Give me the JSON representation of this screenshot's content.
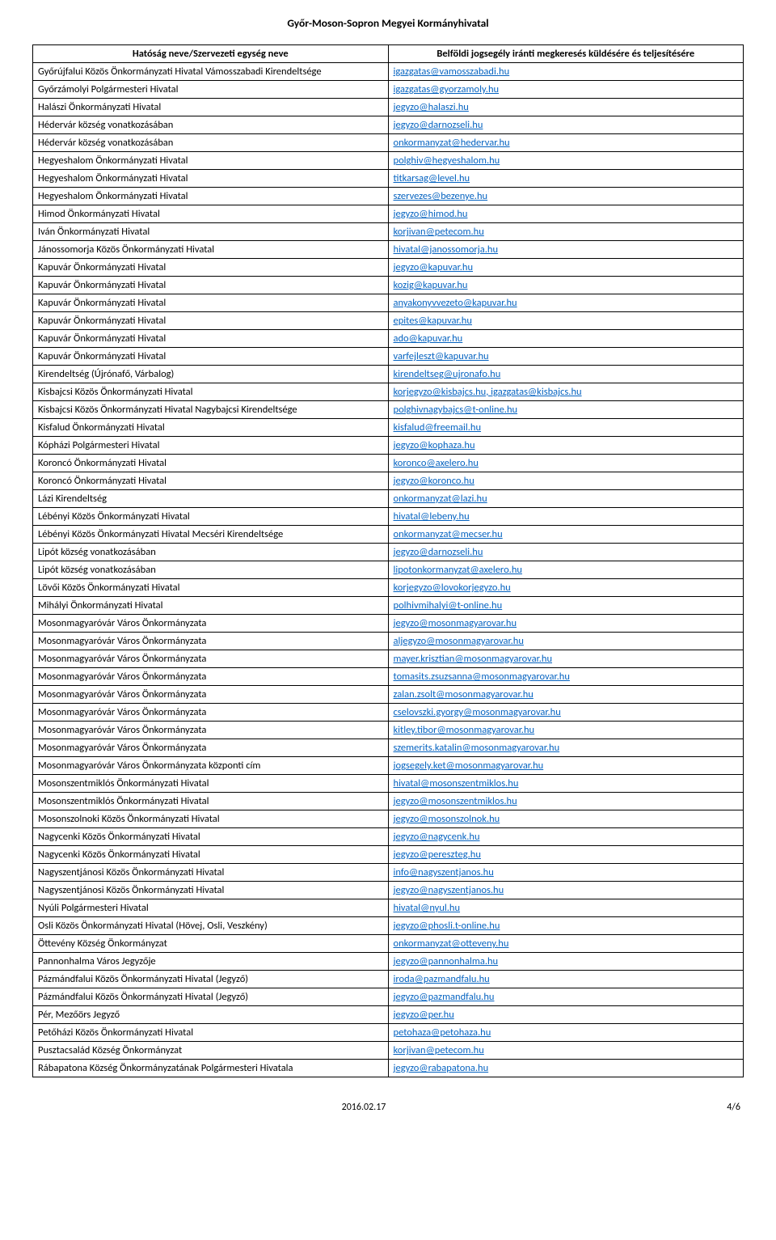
{
  "page_title": "Győr-Moson-Sopron Megyei Kormányhivatal",
  "headers": {
    "col1": "Hatóság neve/Szervezeti egység neve",
    "col2": "Belföldi jogsegély iránti megkeresés küldésére és teljesítésére"
  },
  "footer": {
    "date": "2016.02.17",
    "page": "4/6"
  },
  "link_color": "#0563c1",
  "rows": [
    {
      "name": "Győrújfalui Közös Önkormányzati Hivatal Vámosszabadi Kirendeltsége",
      "contact": "igazgatas@vamosszabadi.hu"
    },
    {
      "name": "Győrzámolyi Polgármesteri Hivatal",
      "contact": "igazgatas@gyorzamoly.hu"
    },
    {
      "name": "Halászi Önkormányzati Hivatal",
      "contact": "jegyzo@halaszi.hu"
    },
    {
      "name": "Hédervár község vonatkozásában",
      "contact": "jegyzo@darnozseli.hu"
    },
    {
      "name": "Hédervár község vonatkozásában",
      "contact": "onkormanyzat@hedervar.hu"
    },
    {
      "name": "Hegyeshalom Önkormányzati Hivatal",
      "contact": "polghiv@hegyeshalom.hu"
    },
    {
      "name": "Hegyeshalom Önkormányzati Hivatal",
      "contact": "titkarsag@level.hu"
    },
    {
      "name": "Hegyeshalom Önkormányzati Hivatal",
      "contact": "szervezes@bezenye.hu"
    },
    {
      "name": "Himod Önkormányzati Hivatal",
      "contact": "jegyzo@himod.hu"
    },
    {
      "name": "Iván Önkormányzati Hivatal",
      "contact": "korjivan@petecom.hu"
    },
    {
      "name": "Jánossomorja Közös Önkormányzati Hivatal",
      "contact": "hivatal@janossomorja.hu"
    },
    {
      "name": "Kapuvár Önkormányzati Hivatal",
      "contact": "jegyzo@kapuvar.hu"
    },
    {
      "name": "Kapuvár Önkormányzati Hivatal",
      "contact": "kozig@kapuvar.hu"
    },
    {
      "name": "Kapuvár Önkormányzati Hivatal",
      "contact": "anyakonyvvezeto@kapuvar.hu"
    },
    {
      "name": "Kapuvár Önkormányzati Hivatal",
      "contact": "epites@kapuvar.hu"
    },
    {
      "name": "Kapuvár Önkormányzati Hivatal",
      "contact": "ado@kapuvar.hu"
    },
    {
      "name": "Kapuvár Önkormányzati Hivatal",
      "contact": "varfejleszt@kapuvar.hu"
    },
    {
      "name": "Kirendeltség (Újrónafő, Várbalog)",
      "contact": "kirendeltseg@ujronafo.hu"
    },
    {
      "name": "Kisbajcsi Közös Önkormányzati Hivatal",
      "contact": "korjegyzo@kisbajcs.hu, igazgatas@kisbajcs.hu"
    },
    {
      "name": "Kisbajcsi Közös Önkormányzati Hivatal Nagybajcsi Kirendeltsége",
      "contact": "polghivnagybajcs@t-online.hu"
    },
    {
      "name": "Kisfalud Önkormányzati Hivatal",
      "contact": "kisfalud@freemail.hu"
    },
    {
      "name": "Kópházi Polgármesteri Hivatal",
      "contact": "jegyzo@kophaza.hu"
    },
    {
      "name": "Koroncó  Önkormányzati Hivatal",
      "contact": "koronco@axelero.hu"
    },
    {
      "name": "Koroncó Önkormányzati Hivatal",
      "contact": "jegyzo@koronco.hu"
    },
    {
      "name": "Lázi Kirendeltség",
      "contact": "onkormanyzat@lazi.hu"
    },
    {
      "name": "Lébényi Közös Önkormányzati Hivatal",
      "contact": "hivatal@lebeny.hu"
    },
    {
      "name": "Lébényi Közös Önkormányzati Hivatal Mecséri Kirendeltsége",
      "contact": "onkormanyzat@mecser.hu"
    },
    {
      "name": "Lipót község vonatkozásában",
      "contact": "jegyzo@darnozseli.hu"
    },
    {
      "name": "Lipót község vonatkozásában",
      "contact": "lipotonkormanyzat@axelero.hu"
    },
    {
      "name": "Lövői Közös Önkormányzati Hivatal",
      "contact": "korjegyzo@lovokorjegyzo.hu"
    },
    {
      "name": "Mihályi Önkormányzati Hivatal",
      "contact": "polhivmihalyi@t-online.hu"
    },
    {
      "name": "Mosonmagyaróvár Város Önkormányzata",
      "contact": "jegyzo@mosonmagyarovar.hu"
    },
    {
      "name": "Mosonmagyaróvár Város Önkormányzata",
      "contact": "aljegyzo@mosonmagyarovar.hu"
    },
    {
      "name": "Mosonmagyaróvár Város Önkormányzata",
      "contact": "mayer.krisztian@mosonmagyarovar.hu"
    },
    {
      "name": "Mosonmagyaróvár Város Önkormányzata",
      "contact": "tomasits.zsuzsanna@mosonmagyarovar.hu"
    },
    {
      "name": "Mosonmagyaróvár Város Önkormányzata",
      "contact": "zalan.zsolt@mosonmagyarovar.hu"
    },
    {
      "name": "Mosonmagyaróvár Város Önkormányzata",
      "contact": "cselovszki.gyorgy@mosonmagyarovar.hu"
    },
    {
      "name": "Mosonmagyaróvár Város Önkormányzata",
      "contact": "kitley.tibor@mosonmagyarovar.hu"
    },
    {
      "name": "Mosonmagyaróvár Város Önkormányzata",
      "contact": "szemerits.katalin@mosonmagyarovar.hu"
    },
    {
      "name": "Mosonmagyaróvár Város Önkormányzata központi cím",
      "contact": "jogsegely.ket@mosonmagyarovar.hu"
    },
    {
      "name": "Mosonszentmiklós Önkormányzati Hivatal",
      "contact": "hivatal@mosonszentmiklos.hu"
    },
    {
      "name": "Mosonszentmiklós Önkormányzati Hivatal",
      "contact": "jegyzo@mosonszentmiklos.hu"
    },
    {
      "name": "Mosonszolnoki Közös Önkormányzati Hivatal",
      "contact": "jegyzo@mosonszolnok.hu"
    },
    {
      "name": "Nagycenki Közös Önkormányzati Hivatal",
      "contact": "jegyzo@nagycenk.hu"
    },
    {
      "name": "Nagycenki Közös Önkormányzati Hivatal",
      "contact": "jegyzo@pereszteg.hu"
    },
    {
      "name": "Nagyszentjánosi Közös Önkormányzati Hivatal",
      "contact": "info@nagyszentjanos.hu"
    },
    {
      "name": "Nagyszentjánosi Közös Önkormányzati Hivatal",
      "contact": "jegyzo@nagyszentjanos.hu"
    },
    {
      "name": "Nyúli  Polgármesteri Hivatal",
      "contact": "hivatal@nyul.hu"
    },
    {
      "name": "Osli Közös Önkormányzati Hivatal (Hövej, Osli, Veszkény)",
      "contact": "jegyzo@phosli.t-online.hu"
    },
    {
      "name": "Öttevény Község Önkormányzat",
      "contact": "onkormanyzat@otteveny.hu"
    },
    {
      "name": "Pannonhalma Város Jegyzője",
      "contact": "jegyzo@pannonhalma.hu"
    },
    {
      "name": "Pázmándfalui Közös Önkormányzati Hivatal (Jegyző)",
      "contact": "iroda@pazmandfalu.hu"
    },
    {
      "name": "Pázmándfalui Közös Önkormányzati Hivatal (Jegyző)",
      "contact": "jegyzo@pazmandfalu.hu"
    },
    {
      "name": "Pér, Mezőörs Jegyző",
      "contact": "jegyzo@per.hu"
    },
    {
      "name": "Petőházi Közös Önkormányzati Hivatal",
      "contact": "petohaza@petohaza.hu"
    },
    {
      "name": "Pusztacsalád  Község Önkormányzat",
      "contact": "korjivan@petecom.hu"
    },
    {
      "name": "Rábapatona Község Önkormányzatának Polgármesteri Hivatala",
      "contact": "jegyzo@rabapatona.hu"
    }
  ]
}
